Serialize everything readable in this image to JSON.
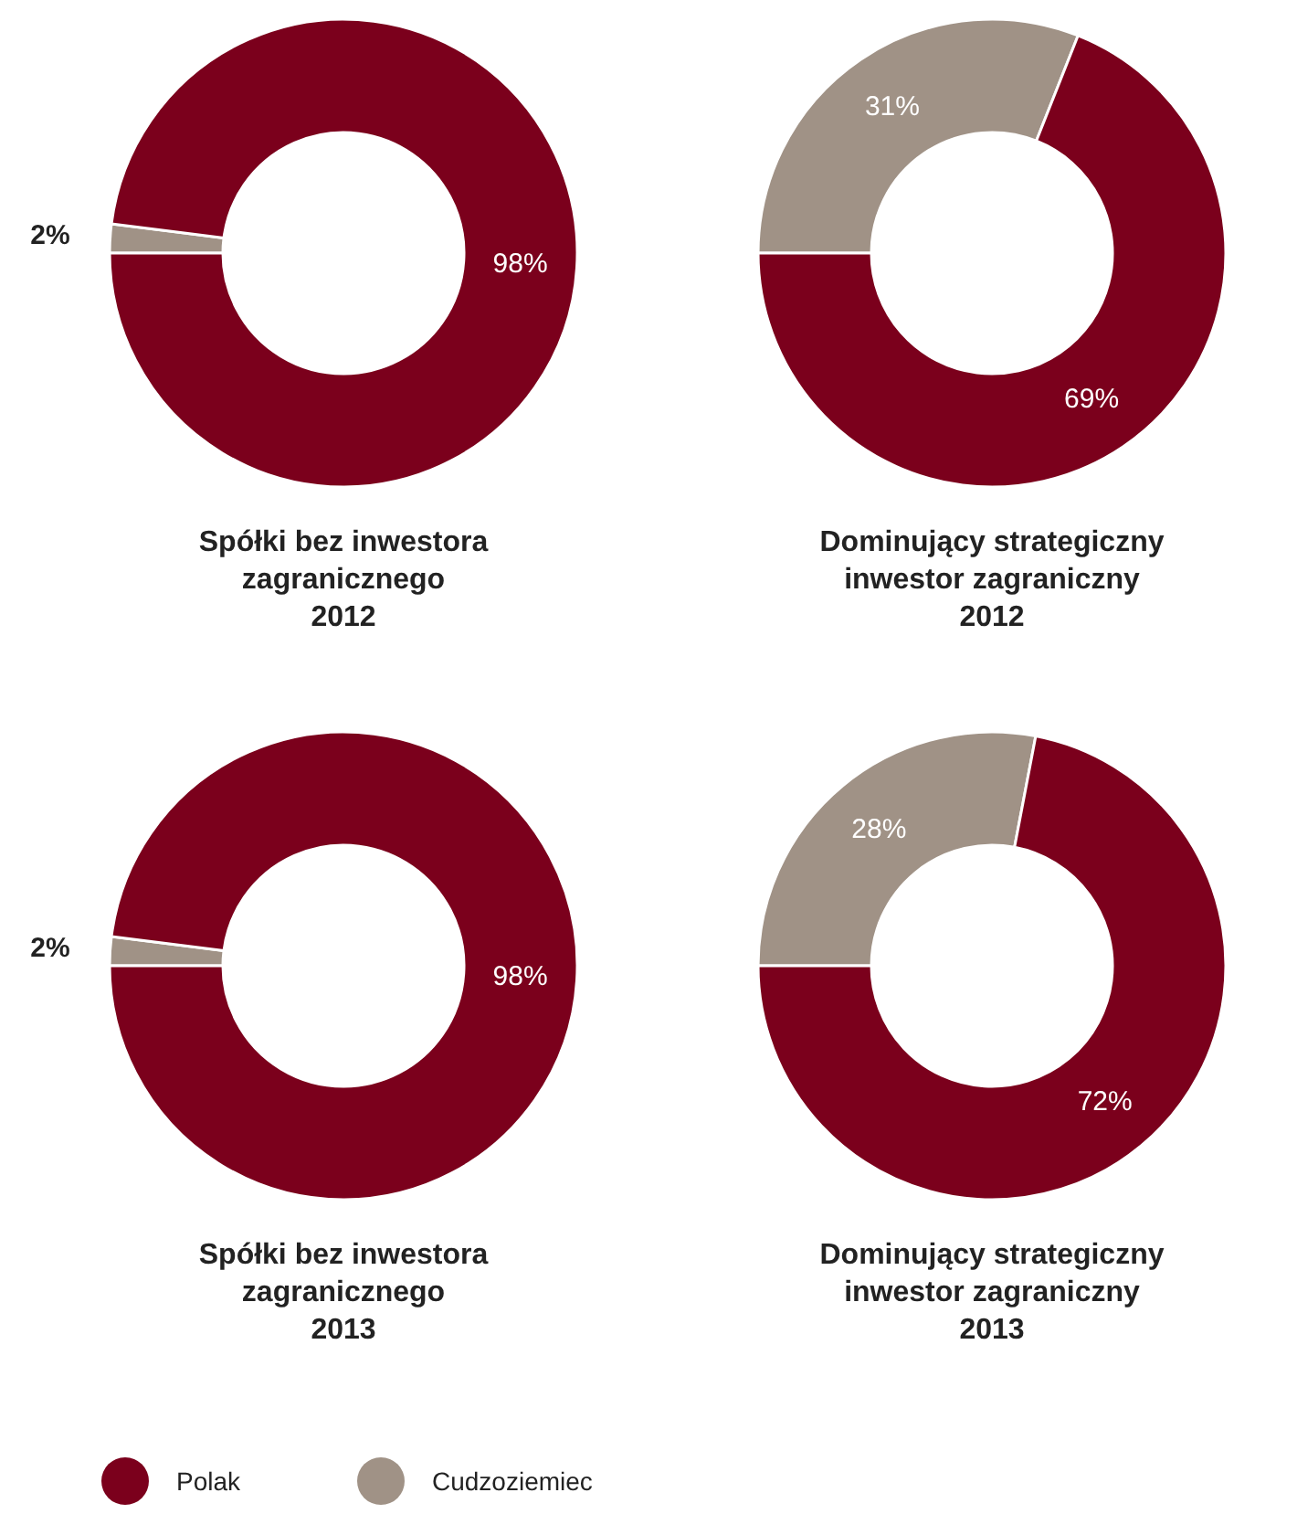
{
  "chart_data": [
    {
      "type": "donut",
      "title": "Spółki bez inwestora\nzagranicznego\n2012",
      "categories": [
        "Polak",
        "Cudzoziemiec"
      ],
      "values": [
        98,
        2
      ],
      "colors": [
        "#7b001c",
        "#a09286"
      ],
      "value_labels": [
        "98%",
        "2%"
      ],
      "legend": "bottom"
    },
    {
      "type": "donut",
      "title": "Dominujący strategiczny\ninwestor zagraniczny\n2012",
      "categories": [
        null,
        null
      ],
      "values": [
        69,
        31
      ],
      "colors": [
        "#7b001c",
        "#a09286"
      ],
      "value_labels": [
        "69%",
        "31%"
      ]
    },
    {
      "type": "donut",
      "title": "Spółki bez inwestora\nzagranicznego\n2013",
      "categories": [
        null,
        null
      ],
      "values": [
        98,
        2
      ],
      "colors": [
        "#7b001c",
        "#a09286"
      ],
      "value_labels": [
        "98%",
        "2%"
      ]
    },
    {
      "type": "donut",
      "title": "Dominujący strategiczny\ninwestor zagraniczny\n2013",
      "categories": [
        null,
        null
      ],
      "values": [
        72,
        28
      ],
      "colors": [
        "#7b001c",
        "#a09286"
      ],
      "value_labels": [
        "72%",
        "28%"
      ]
    }
  ]
}
